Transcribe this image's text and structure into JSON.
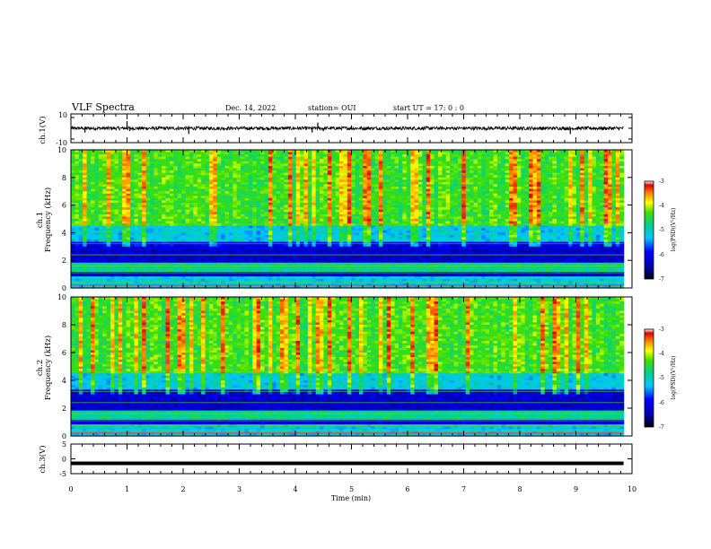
{
  "header": {
    "title": "VLF Spectra",
    "date": "Dec. 14, 2022",
    "station": "station= OUI",
    "start": "start  UT  =   17: 0  : 0"
  },
  "chart_data": [
    {
      "type": "line",
      "panel": "ch1-waveform",
      "ylabel": "ch.1(V)",
      "ylim": [
        -10,
        10
      ],
      "yticks": [
        "10",
        "-10"
      ],
      "xlim": [
        0,
        10
      ],
      "note_values": "waveform centred near 0 V with spikes",
      "x": [
        0.0,
        0.25,
        0.3,
        1.0,
        1.05,
        2.1,
        2.15,
        4.3,
        4.4,
        4.5,
        5.0,
        8.9,
        9.8
      ],
      "y": [
        0.0,
        -3,
        0.5,
        5,
        -2,
        -4,
        1,
        -3,
        4,
        -2,
        2,
        -4,
        0.5
      ]
    },
    {
      "type": "heatmap",
      "panel": "ch1-spectrogram",
      "ylabel_line1": "ch.1",
      "ylabel_line2": "Frequency (kHz)",
      "ylim": [
        0,
        10
      ],
      "xlim": [
        0,
        10
      ],
      "yticks": [
        "0",
        "2",
        "4",
        "6",
        "8",
        "10"
      ],
      "colorbar": {
        "label": "log(PSD)(V²/Hz)",
        "range": [
          -7,
          -3
        ],
        "ticks": [
          "-3",
          "-4",
          "-5",
          "-6",
          "-7"
        ]
      }
    },
    {
      "type": "heatmap",
      "panel": "ch2-spectrogram",
      "ylabel_line1": "ch.2",
      "ylabel_line2": "Frequency (kHz)",
      "ylim": [
        0,
        10
      ],
      "xlim": [
        0,
        10
      ],
      "yticks": [
        "0",
        "2",
        "4",
        "6",
        "8",
        "10"
      ],
      "colorbar": {
        "label": "log(PSD)(V²/Hz)",
        "range": [
          -7,
          -3
        ],
        "ticks": [
          "-3",
          "-4",
          "-5",
          "-6",
          "-7"
        ]
      }
    },
    {
      "type": "line",
      "panel": "ch3-waveform",
      "ylabel": "ch.3(V)",
      "ylim": [
        -5,
        5
      ],
      "yticks": [
        "5",
        "0",
        "-5"
      ],
      "xlim": [
        0,
        10
      ],
      "x": [
        0,
        9.85
      ],
      "y": [
        -1.5,
        -1.5
      ]
    }
  ],
  "xaxis": {
    "label": "Time  (min)",
    "ticks": [
      "0",
      "1",
      "2",
      "3",
      "4",
      "5",
      "6",
      "7",
      "8",
      "9",
      "10"
    ]
  }
}
